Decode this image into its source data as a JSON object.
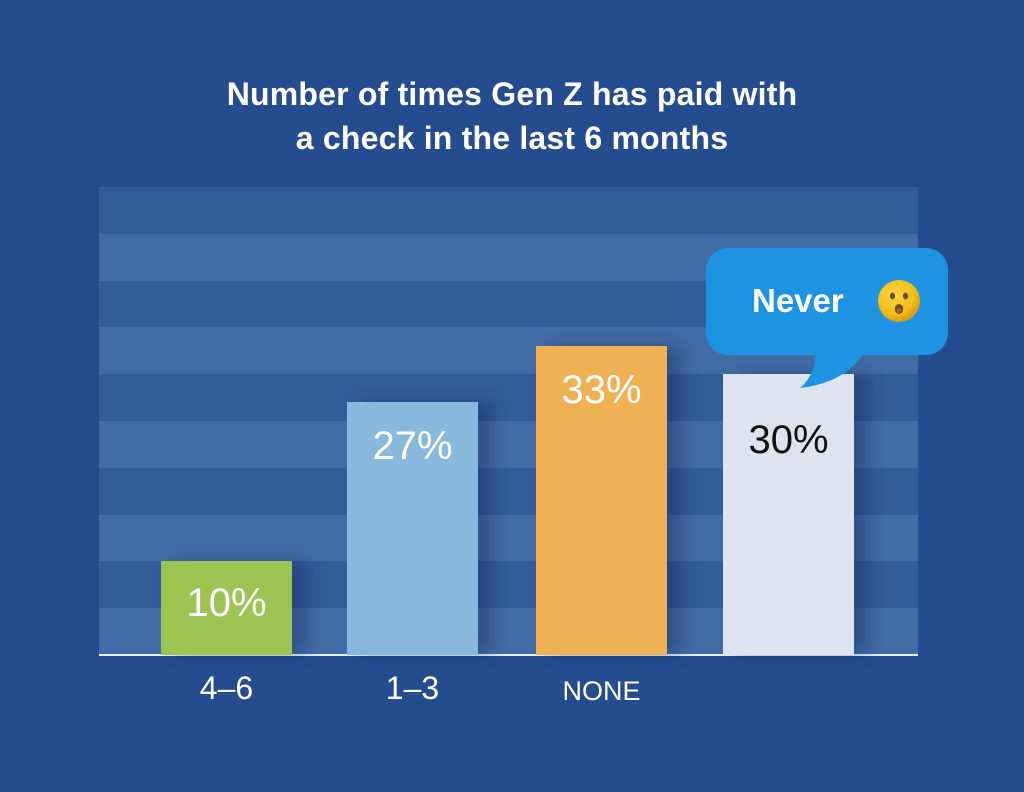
{
  "chart_data": {
    "type": "bar",
    "title": "Number of times Gen Z has paid with a check in the last 6 months",
    "title_lines": [
      "Number of times Gen Z has paid with",
      "a check in the last 6 months"
    ],
    "categories": [
      "4–6",
      "1–3",
      "NONE",
      ""
    ],
    "values": [
      10,
      27,
      33,
      30
    ],
    "value_labels": [
      "10%",
      "27%",
      "33%",
      "30%"
    ],
    "unit": "%",
    "xlabel": "",
    "ylabel": "",
    "ylim": [
      0,
      50
    ],
    "grid": "alternating horizontal bands (10 bands, 5% each)",
    "bar_colors": [
      "#9bc453",
      "#89b8dd",
      "#f0b054",
      "#dde4ef"
    ],
    "label_colors": [
      "#ffffff",
      "#ffffff",
      "#ffffff",
      "#111111"
    ],
    "annotation": {
      "type": "speech-bubble",
      "text": "Never",
      "emoji": "hushed-face",
      "points_to_bar": 3
    }
  },
  "colors": {
    "background": "#244c8e",
    "band_dark": "#335c9a",
    "band_light": "#426ca6",
    "bubble": "#1e93e1"
  }
}
